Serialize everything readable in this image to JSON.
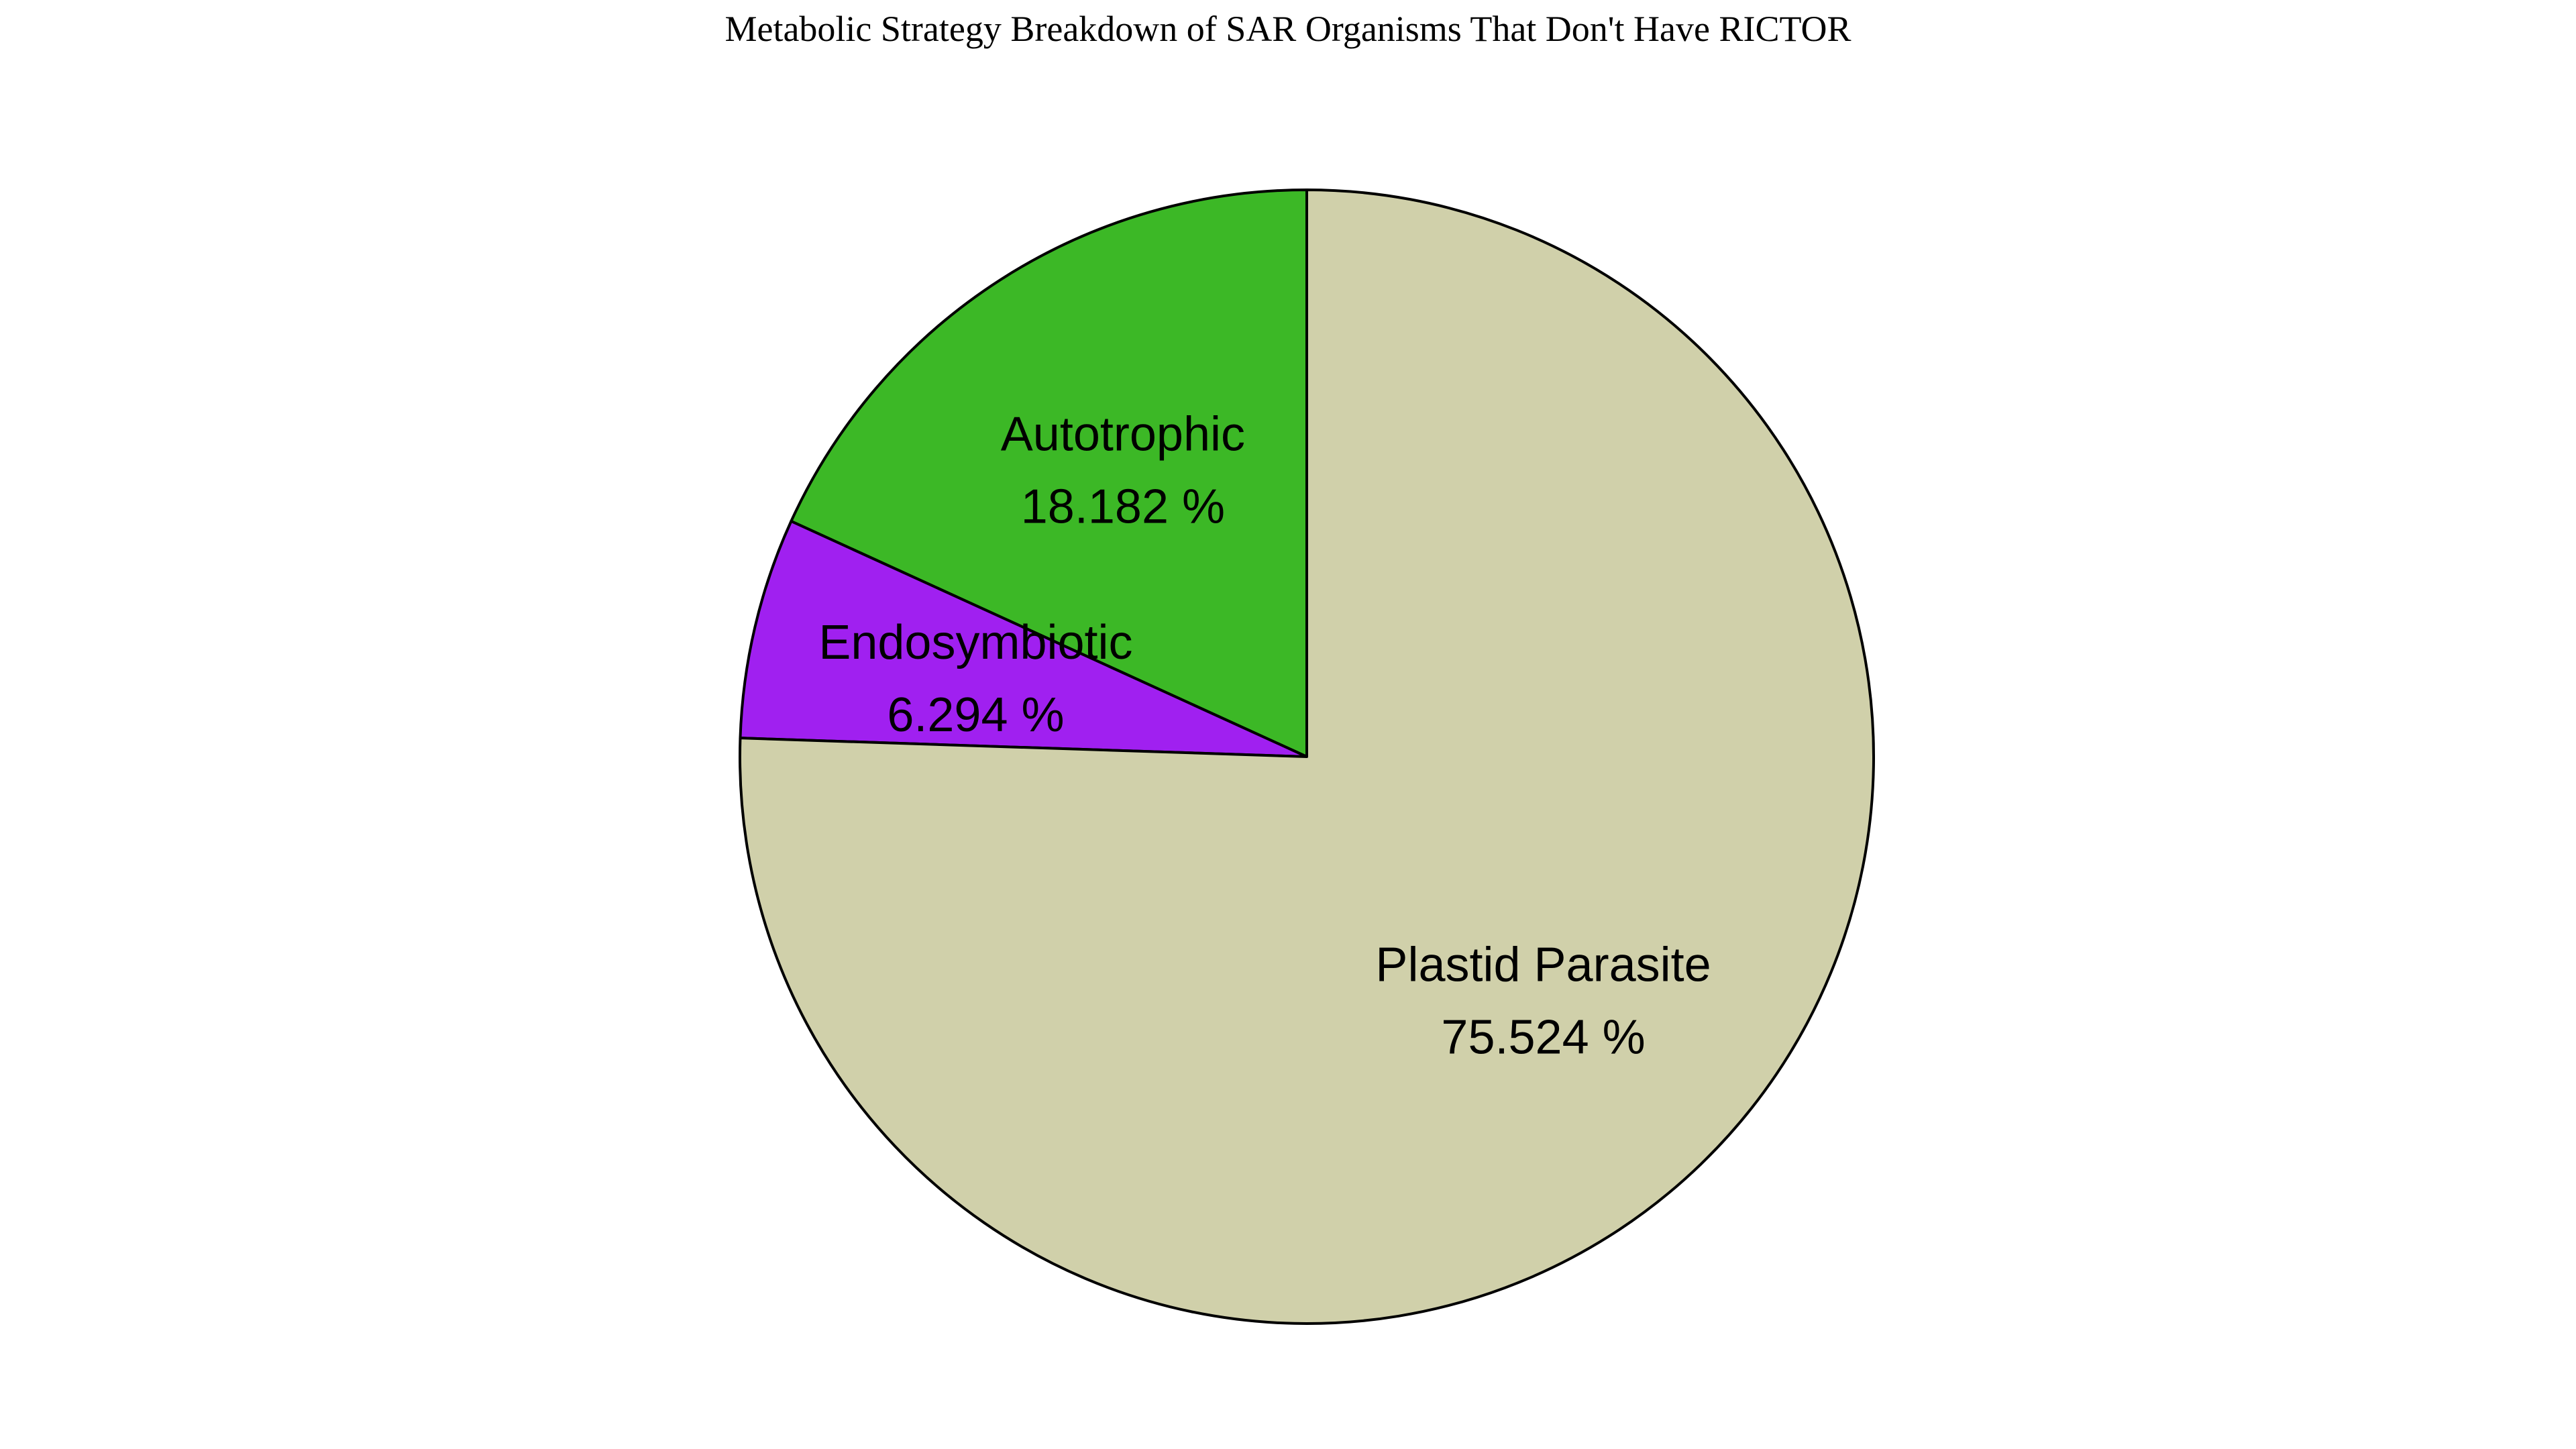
{
  "chart_data": {
    "type": "pie",
    "title": "Metabolic Strategy Breakdown of SAR Organisms That Don't Have RICTOR",
    "start_angle": "top",
    "direction": "counterclockwise",
    "slices": [
      {
        "label": "Autotrophic",
        "value": 18.182,
        "value_label": "18.182 %",
        "color": "#3cb826"
      },
      {
        "label": "Endosymbiotic",
        "value": 6.294,
        "value_label": "6.294 %",
        "color": "#a020f0"
      },
      {
        "label": "Plastid Parasite",
        "value": 75.524,
        "value_label": "75.524 %",
        "color": "#d0d0aa"
      }
    ],
    "edge_color": "#000000"
  }
}
